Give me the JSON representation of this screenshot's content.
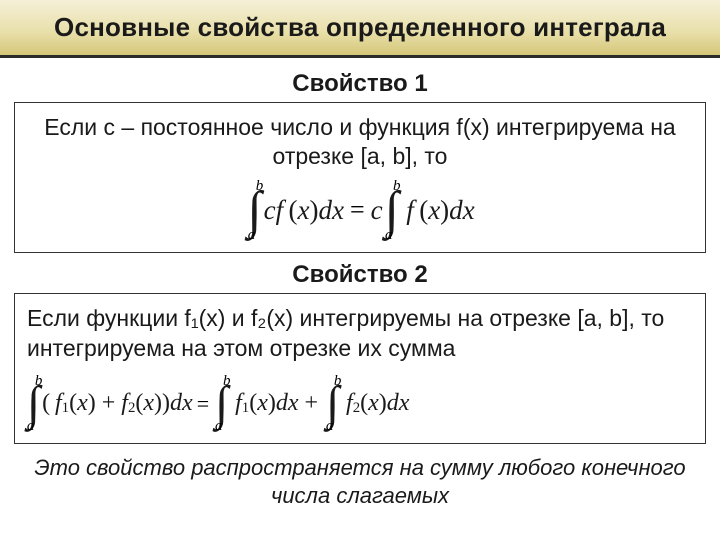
{
  "title": "Основные свойства определенного интеграла",
  "prop1": {
    "label": "Свойство 1",
    "text": "Если с – постоянное число и функция f(x) интегрируема на отрезке [a, b], то",
    "lhs_coef": "c",
    "func": "f",
    "arg_open": "(",
    "x": "x",
    "arg_close": ")",
    "dx": "dx",
    "rhs_coef": "c",
    "int_upper": "b",
    "int_lower": "a"
  },
  "prop2": {
    "label": "Свойство 2",
    "text": "Если функции f₁(x) и f₂(x) интегрируемы на отрезке [a, b], то интегрируема на этом отрезке их сумма",
    "f1": "f",
    "f2": "f",
    "sub1": "1",
    "sub2": "2",
    "plus": "+",
    "int_upper": "b",
    "int_lower": "a"
  },
  "footnote": "Это свойство распространяется на сумму любого конечного числа слагаемых"
}
